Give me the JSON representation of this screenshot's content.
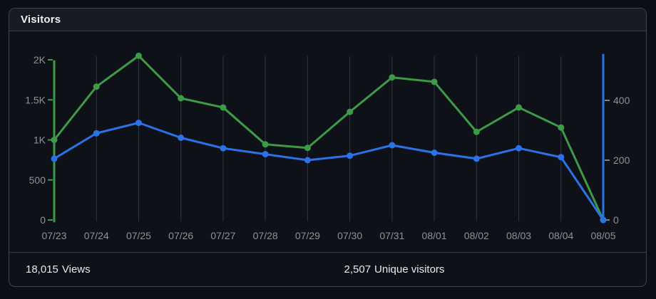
{
  "card": {
    "title": "Visitors",
    "footer": {
      "views": {
        "value": "18,015",
        "label": "Views"
      },
      "unique": {
        "value": "2,507",
        "label": "Unique visitors"
      }
    }
  },
  "colors": {
    "views_green": "#3d9b47",
    "unique_blue": "#2b72e6",
    "grid": "#303540",
    "tick_label": "#8b929b",
    "right_tick_mark": "#79808a"
  },
  "chart_data": {
    "type": "line",
    "title": "Visitors",
    "x": [
      "07/23",
      "07/24",
      "07/25",
      "07/26",
      "07/27",
      "07/28",
      "07/29",
      "07/30",
      "07/31",
      "08/01",
      "08/02",
      "08/03",
      "08/04",
      "08/05"
    ],
    "series": [
      {
        "name": "Views",
        "axis": "left",
        "color_key": "views_green",
        "values": [
          1000,
          1665,
          2050,
          1520,
          1405,
          945,
          900,
          1350,
          1780,
          1725,
          1100,
          1405,
          1155,
          0
        ]
      },
      {
        "name": "Unique visitors",
        "axis": "right",
        "color_key": "unique_blue",
        "values": [
          205,
          290,
          325,
          275,
          240,
          220,
          200,
          215,
          250,
          225,
          205,
          240,
          210,
          0
        ]
      }
    ],
    "left_axis": {
      "range": [
        0,
        2000
      ],
      "ticks": [
        0,
        500,
        1000,
        1500,
        2000
      ],
      "tick_labels": [
        "0",
        "500",
        "1K",
        "1.5K",
        "2K"
      ]
    },
    "right_axis": {
      "range": [
        0,
        550
      ],
      "ticks": [
        0,
        200,
        400
      ],
      "tick_labels": [
        "0",
        "200",
        "400"
      ]
    },
    "grid": "vertical",
    "legend": "none",
    "totals": {
      "views": 18015,
      "unique_visitors": 2507
    }
  }
}
